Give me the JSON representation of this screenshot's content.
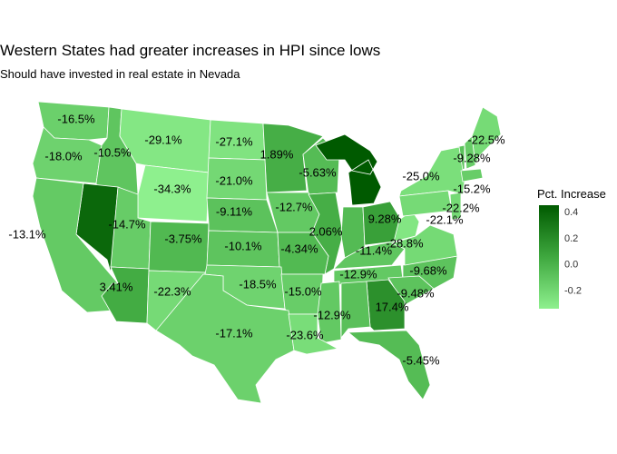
{
  "title": "Western States had greater increases in HPI since lows",
  "subtitle": "Should have invested in real estate in Nevada",
  "legend": {
    "title": "Pct. Increase",
    "ticks": [
      "0.4",
      "0.2",
      "0.0",
      "-0.2"
    ],
    "tick_values": [
      0.4,
      0.2,
      0.0,
      -0.2
    ],
    "color_low": "#8ef08e",
    "color_high": "#005a00",
    "range": [
      -0.343,
      0.45
    ]
  },
  "chart_data": {
    "type": "choropleth",
    "region": "USA",
    "title": "Western States had greater increases in HPI since lows",
    "subtitle": "Should have invested in real estate in Nevada",
    "legend_title": "Pct. Increase",
    "states": [
      {
        "state": "WA",
        "label": "-16.5%",
        "value": -0.165
      },
      {
        "state": "OR",
        "label": "-18.0%",
        "value": -0.18
      },
      {
        "state": "ID",
        "label": "-10.5%",
        "value": -0.105
      },
      {
        "state": "MT",
        "label": "-29.1%",
        "value": -0.291
      },
      {
        "state": "ND",
        "label": "-27.1%",
        "value": -0.271
      },
      {
        "state": "MN",
        "label": "1.89%",
        "value": 0.0189
      },
      {
        "state": "WY",
        "label": "-34.3%",
        "value": -0.343
      },
      {
        "state": "SD",
        "label": "-21.0%",
        "value": -0.21
      },
      {
        "state": "WI",
        "label": "-5.63%",
        "value": -0.0563
      },
      {
        "state": "MI",
        "label": "",
        "value": 0.45
      },
      {
        "state": "NV",
        "label": "",
        "value": 0.38
      },
      {
        "state": "CA",
        "label": "-13.1%",
        "value": -0.131
      },
      {
        "state": "UT",
        "label": "-14.7%",
        "value": -0.147
      },
      {
        "state": "CO",
        "label": "-3.75%",
        "value": -0.0375
      },
      {
        "state": "NE",
        "label": "-9.11%",
        "value": -0.0911
      },
      {
        "state": "IA",
        "label": "-12.7%",
        "value": -0.127
      },
      {
        "state": "IL",
        "label": "2.06%",
        "value": 0.0206
      },
      {
        "state": "IN",
        "label": "",
        "value": -0.05
      },
      {
        "state": "OH",
        "label": "9.28%",
        "value": 0.0928
      },
      {
        "state": "KS",
        "label": "-10.1%",
        "value": -0.101
      },
      {
        "state": "MO",
        "label": "-4.34%",
        "value": -0.0434
      },
      {
        "state": "KY",
        "label": "-11.4%",
        "value": -0.114
      },
      {
        "state": "WV",
        "label": "-28.8%",
        "value": -0.288
      },
      {
        "state": "AZ",
        "label": "3.41%",
        "value": 0.0341
      },
      {
        "state": "NM",
        "label": "-22.3%",
        "value": -0.223
      },
      {
        "state": "OK",
        "label": "-18.5%",
        "value": -0.185
      },
      {
        "state": "AR",
        "label": "-15.0%",
        "value": -0.15
      },
      {
        "state": "TN",
        "label": "-12.9%",
        "value": -0.129
      },
      {
        "state": "NC",
        "label": "-9.68%",
        "value": -0.0968
      },
      {
        "state": "SC",
        "label": "-9.48%",
        "value": -0.0948
      },
      {
        "state": "GA",
        "label": "17.4%",
        "value": 0.174
      },
      {
        "state": "MS",
        "label": "-12.9%",
        "value": -0.129
      },
      {
        "state": "AL",
        "label": "",
        "value": -0.08
      },
      {
        "state": "TX",
        "label": "-17.1%",
        "value": -0.171
      },
      {
        "state": "LA",
        "label": "-23.6%",
        "value": -0.236
      },
      {
        "state": "FL",
        "label": "-5.45%",
        "value": -0.0545
      },
      {
        "state": "ME",
        "label": "-22.5%",
        "value": -0.225
      },
      {
        "state": "VT",
        "label": "-9.28%",
        "value": -0.0928
      },
      {
        "state": "NH",
        "label": "",
        "value": -0.15
      },
      {
        "state": "NY",
        "label": "-25.0%",
        "value": -0.25
      },
      {
        "state": "MA",
        "label": "-15.2%",
        "value": -0.152
      },
      {
        "state": "PA",
        "label": "-22.1%",
        "value": -0.221
      },
      {
        "state": "NJ",
        "label": "-22.2%",
        "value": -0.222
      },
      {
        "state": "VA",
        "label": "",
        "value": -0.22
      }
    ]
  }
}
